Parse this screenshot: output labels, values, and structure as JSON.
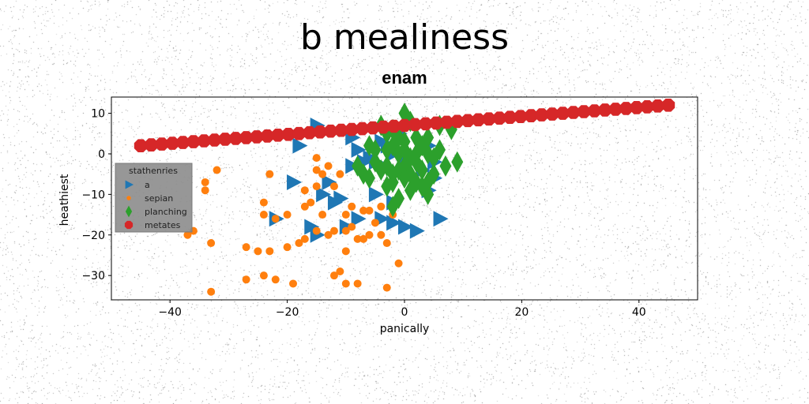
{
  "figure": {
    "suptitle": "b mealiness",
    "title": "enam"
  },
  "chart_data": {
    "type": "scatter",
    "title": "enam",
    "suptitle": "b mealiness",
    "xlabel": "panically",
    "ylabel": "heathiest",
    "xlim": [
      -50,
      50
    ],
    "ylim": [
      -36,
      14
    ],
    "xticks": [
      -40,
      -20,
      0,
      20,
      40
    ],
    "xtick_labels": [
      "−40",
      "−20",
      "0",
      "20",
      "40"
    ],
    "yticks": [
      10,
      0,
      -10,
      -20,
      -30
    ],
    "ytick_labels": [
      "10",
      "0",
      "−10",
      "−20",
      "−30"
    ],
    "grid": false,
    "legend": {
      "title": "stathenries",
      "placement": "center-left"
    },
    "series": [
      {
        "name": "a",
        "marker": "triangle-right",
        "color": "#1f77b4",
        "points": [
          [
            -15,
            7
          ],
          [
            -18,
            2
          ],
          [
            -9,
            4
          ],
          [
            -8,
            1
          ],
          [
            -6,
            -1
          ],
          [
            -5,
            -2
          ],
          [
            -4,
            3
          ],
          [
            -3,
            2
          ],
          [
            -2,
            0
          ],
          [
            -1,
            5
          ],
          [
            0,
            -1
          ],
          [
            4,
            2
          ],
          [
            5,
            -2
          ],
          [
            -19,
            -7
          ],
          [
            -13,
            -7
          ],
          [
            -14,
            -10
          ],
          [
            -12,
            -12
          ],
          [
            -9,
            -3
          ],
          [
            -5,
            -10
          ],
          [
            -2,
            -12
          ],
          [
            3,
            -4
          ],
          [
            5,
            -6
          ],
          [
            4,
            -9
          ],
          [
            -22,
            -16
          ],
          [
            -16,
            -18
          ],
          [
            -15,
            -20
          ],
          [
            -10,
            -18
          ],
          [
            -8,
            -16
          ],
          [
            -4,
            -16
          ],
          [
            -2,
            -17
          ],
          [
            0,
            -18
          ],
          [
            2,
            -19
          ],
          [
            6,
            -16
          ],
          [
            -7,
            -2
          ],
          [
            -11,
            -11
          ]
        ]
      },
      {
        "name": "sepian",
        "marker": "circle",
        "color": "#ff7f0e",
        "points": [
          [
            -32,
            -4
          ],
          [
            -34,
            -7
          ],
          [
            -34,
            -9
          ],
          [
            -36,
            -19
          ],
          [
            -37,
            -20
          ],
          [
            -33,
            -22
          ],
          [
            -27,
            -23
          ],
          [
            -25,
            -24
          ],
          [
            -23,
            -24
          ],
          [
            -20,
            -23
          ],
          [
            -17,
            -21
          ],
          [
            -18,
            -22
          ],
          [
            -15,
            -19
          ],
          [
            -13,
            -20
          ],
          [
            -12,
            -19
          ],
          [
            -10,
            -19
          ],
          [
            -9,
            -18
          ],
          [
            -8,
            -21
          ],
          [
            -7,
            -21
          ],
          [
            -6,
            -20
          ],
          [
            -4,
            -20
          ],
          [
            -3,
            -22
          ],
          [
            -5,
            -17
          ],
          [
            -6,
            -14
          ],
          [
            -4,
            -13
          ],
          [
            -9,
            -13
          ],
          [
            -10,
            -15
          ],
          [
            -14,
            -15
          ],
          [
            -16,
            -12
          ],
          [
            -17,
            -13
          ],
          [
            -15,
            -8
          ],
          [
            -14,
            -5
          ],
          [
            -15,
            -4
          ],
          [
            -13,
            -3
          ],
          [
            -15,
            -1
          ],
          [
            -17,
            -9
          ],
          [
            -20,
            -15
          ],
          [
            -22,
            -16
          ],
          [
            -24,
            -15
          ],
          [
            -23,
            -5
          ],
          [
            -24,
            -12
          ],
          [
            -10,
            -24
          ],
          [
            -11,
            -29
          ],
          [
            -12,
            -30
          ],
          [
            -10,
            -32
          ],
          [
            -8,
            -32
          ],
          [
            -19,
            -32
          ],
          [
            -22,
            -31
          ],
          [
            -24,
            -30
          ],
          [
            -27,
            -31
          ],
          [
            -33,
            -34
          ],
          [
            -3,
            -33
          ],
          [
            -1,
            -27
          ],
          [
            -7,
            -14
          ],
          [
            -2,
            -15
          ],
          [
            -11,
            -5
          ],
          [
            -12,
            -8
          ]
        ]
      },
      {
        "name": "planching",
        "marker": "thin-diamond",
        "color": "#2ca02c",
        "points": [
          [
            -4,
            7
          ],
          [
            -3,
            5
          ],
          [
            -2,
            6
          ],
          [
            0,
            10
          ],
          [
            1,
            8
          ],
          [
            -1,
            4
          ],
          [
            0,
            3
          ],
          [
            2,
            4
          ],
          [
            4,
            4
          ],
          [
            6,
            7
          ],
          [
            8,
            6
          ],
          [
            -6,
            2
          ],
          [
            -5,
            1
          ],
          [
            -3,
            1
          ],
          [
            -2,
            2
          ],
          [
            -1,
            0
          ],
          [
            0,
            1
          ],
          [
            1,
            -1
          ],
          [
            2,
            0
          ],
          [
            3,
            2
          ],
          [
            4,
            0
          ],
          [
            5,
            -1
          ],
          [
            -5,
            -2
          ],
          [
            -4,
            -4
          ],
          [
            -3,
            -3
          ],
          [
            -2,
            -5
          ],
          [
            -1,
            -4
          ],
          [
            0,
            -3
          ],
          [
            1,
            -5
          ],
          [
            2,
            -2
          ],
          [
            3,
            -4
          ],
          [
            -8,
            -3
          ],
          [
            -7,
            -5
          ],
          [
            -6,
            -6
          ],
          [
            -3,
            -8
          ],
          [
            -2,
            -7
          ],
          [
            0,
            -6
          ],
          [
            2,
            -7
          ],
          [
            3,
            -8
          ],
          [
            4,
            -10
          ],
          [
            5,
            -5
          ],
          [
            7,
            -3
          ],
          [
            9,
            -2
          ],
          [
            -1,
            -11
          ],
          [
            1,
            -9
          ],
          [
            4,
            -7
          ],
          [
            6,
            1
          ],
          [
            -2,
            -13
          ]
        ]
      },
      {
        "name": "metates",
        "marker": "octagon",
        "color": "#d62728",
        "points": [
          [
            -45.0,
            2.0
          ],
          [
            -43.2,
            2.2
          ],
          [
            -41.4,
            2.4
          ],
          [
            -39.6,
            2.6
          ],
          [
            -37.8,
            2.8
          ],
          [
            -36.0,
            3.0
          ],
          [
            -34.2,
            3.2
          ],
          [
            -32.4,
            3.4
          ],
          [
            -30.6,
            3.6
          ],
          [
            -28.8,
            3.8
          ],
          [
            -27.0,
            4.0
          ],
          [
            -25.2,
            4.2
          ],
          [
            -23.4,
            4.4
          ],
          [
            -21.6,
            4.6
          ],
          [
            -19.8,
            4.8
          ],
          [
            -18.0,
            5.0
          ],
          [
            -16.2,
            5.2
          ],
          [
            -14.4,
            5.4
          ],
          [
            -12.6,
            5.6
          ],
          [
            -10.8,
            5.8
          ],
          [
            -9.0,
            6.0
          ],
          [
            -7.2,
            6.2
          ],
          [
            -5.4,
            6.4
          ],
          [
            -3.6,
            6.6
          ],
          [
            -1.8,
            6.8
          ],
          [
            0.0,
            7.0
          ],
          [
            1.8,
            7.2
          ],
          [
            3.6,
            7.4
          ],
          [
            5.4,
            7.6
          ],
          [
            7.2,
            7.8
          ],
          [
            9.0,
            8.0
          ],
          [
            10.8,
            8.2
          ],
          [
            12.6,
            8.4
          ],
          [
            14.4,
            8.6
          ],
          [
            16.2,
            8.8
          ],
          [
            18.0,
            9.0
          ],
          [
            19.8,
            9.2
          ],
          [
            21.6,
            9.4
          ],
          [
            23.4,
            9.6
          ],
          [
            25.2,
            9.8
          ],
          [
            27.0,
            10.0
          ],
          [
            28.8,
            10.2
          ],
          [
            30.6,
            10.4
          ],
          [
            32.4,
            10.6
          ],
          [
            34.2,
            10.8
          ],
          [
            36.0,
            11.0
          ],
          [
            37.8,
            11.2
          ],
          [
            39.6,
            11.4
          ],
          [
            41.4,
            11.6
          ],
          [
            43.2,
            11.8
          ],
          [
            45.0,
            12.0
          ]
        ]
      }
    ]
  }
}
